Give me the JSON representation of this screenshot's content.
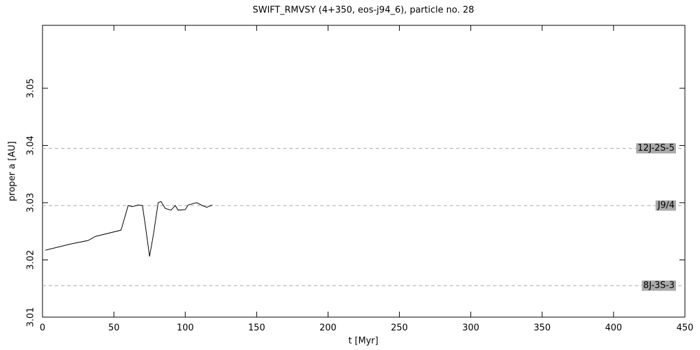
{
  "chart_data": {
    "type": "line",
    "title": "SWIFT_RMVSY (4+350, eos-j94_6), particle no. 28",
    "x_label": "t [Myr]",
    "y_label": "proper a [AU]",
    "x": [
      2,
      20,
      32,
      37,
      55,
      60,
      63,
      67,
      70,
      72,
      75,
      78,
      81,
      83,
      86,
      90,
      93,
      95,
      100,
      102,
      108,
      112,
      115,
      119
    ],
    "values": [
      3.0217,
      3.0228,
      3.0234,
      3.0241,
      3.0252,
      3.0295,
      3.0293,
      3.0296,
      3.0295,
      3.0261,
      3.0206,
      3.0249,
      3.03,
      3.0302,
      3.029,
      3.0287,
      3.0295,
      3.0287,
      3.0288,
      3.0296,
      3.03,
      3.0295,
      3.0292,
      3.0296
    ],
    "color": "#000000",
    "xlim": [
      0,
      450
    ],
    "xticks": [
      0,
      50,
      100,
      150,
      200,
      250,
      300,
      350,
      400,
      450
    ],
    "ylim": [
      3.01,
      3.061
    ],
    "yticks": [
      3.01,
      3.02,
      3.03,
      3.04,
      3.05
    ],
    "resonances": [
      {
        "label": "12J-2S-5",
        "value": 3.0395
      },
      {
        "label": "J9/4",
        "value": 3.0295
      },
      {
        "label": "8J-3S-3",
        "value": 3.0155
      }
    ]
  }
}
